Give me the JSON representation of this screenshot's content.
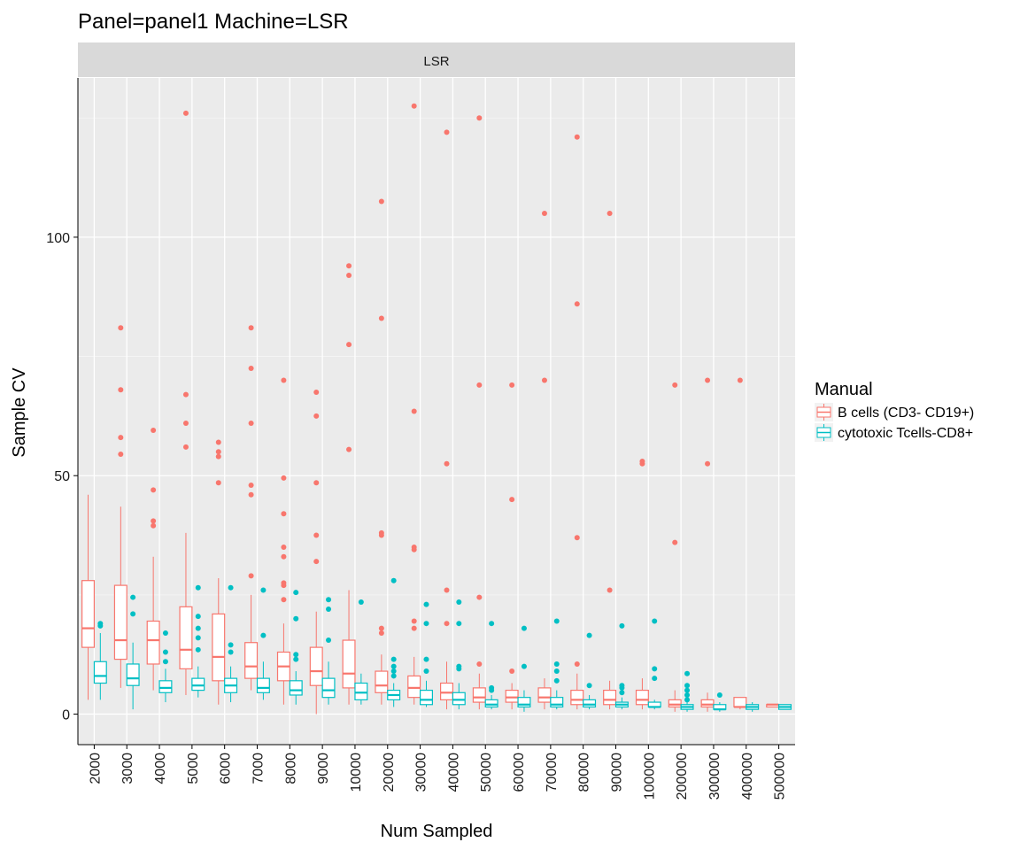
{
  "chart_data": {
    "type": "boxplot",
    "title": "Panel=panel1 Machine=LSR",
    "facet_label": "LSR",
    "xlabel": "Num Sampled",
    "ylabel": "Sample CV",
    "y_ticks": [
      0,
      50,
      100
    ],
    "y_ticks_labels": [
      "0",
      "50",
      "100"
    ],
    "ylim": [
      -6.4,
      133.4
    ],
    "legend": {
      "title": "Manual",
      "position": "right"
    },
    "categories": [
      "2000",
      "3000",
      "4000",
      "5000",
      "6000",
      "7000",
      "8000",
      "9000",
      "10000",
      "20000",
      "30000",
      "40000",
      "50000",
      "60000",
      "70000",
      "80000",
      "90000",
      "100000",
      "200000",
      "300000",
      "400000",
      "500000"
    ],
    "series": [
      {
        "name": "B cells (CD3- CD19+)",
        "color": "#F8766D",
        "boxes": [
          {
            "min": 3,
            "q1": 14,
            "median": 18,
            "q3": 28,
            "max": 46,
            "outliers": []
          },
          {
            "min": 5.5,
            "q1": 11.5,
            "median": 15.5,
            "q3": 27,
            "max": 43.5,
            "outliers": [
              54.5,
              58,
              68,
              81
            ]
          },
          {
            "min": 5,
            "q1": 10.5,
            "median": 15.5,
            "q3": 19.5,
            "max": 33,
            "outliers": [
              39.5,
              40.5,
              47,
              59.5
            ]
          },
          {
            "min": 4,
            "q1": 9.5,
            "median": 13.5,
            "q3": 22.5,
            "max": 38,
            "outliers": [
              56,
              61,
              67,
              126
            ]
          },
          {
            "min": 2,
            "q1": 7,
            "median": 12,
            "q3": 21,
            "max": 28.5,
            "outliers": [
              48.5,
              54,
              55,
              57
            ]
          },
          {
            "min": 5,
            "q1": 7.5,
            "median": 10,
            "q3": 15,
            "max": 25,
            "outliers": [
              29,
              46,
              48,
              61,
              72.5,
              81
            ]
          },
          {
            "min": 2,
            "q1": 7,
            "median": 10,
            "q3": 13,
            "max": 19,
            "outliers": [
              24,
              27,
              27.5,
              33,
              35,
              42,
              49.5,
              70
            ]
          },
          {
            "min": 0,
            "q1": 6,
            "median": 9,
            "q3": 14,
            "max": 21.5,
            "outliers": [
              32,
              37.5,
              48.5,
              62.5,
              67.5
            ]
          },
          {
            "min": 2,
            "q1": 5.5,
            "median": 8.5,
            "q3": 15.5,
            "max": 26,
            "outliers": [
              55.5,
              77.5,
              92,
              94
            ]
          },
          {
            "min": 2,
            "q1": 4.5,
            "median": 6,
            "q3": 9,
            "max": 12.5,
            "outliers": [
              17,
              18,
              37.5,
              38,
              83,
              107.5
            ]
          },
          {
            "min": 2,
            "q1": 3.5,
            "median": 5.5,
            "q3": 8,
            "max": 12,
            "outliers": [
              18,
              19.5,
              34.5,
              35,
              63.5,
              127.5
            ]
          },
          {
            "min": 1,
            "q1": 3,
            "median": 4.5,
            "q3": 6.5,
            "max": 11,
            "outliers": [
              19,
              26,
              52.5,
              122
            ]
          },
          {
            "min": 1,
            "q1": 2.5,
            "median": 3.5,
            "q3": 5.5,
            "max": 8.5,
            "outliers": [
              10.5,
              24.5,
              69,
              125
            ]
          },
          {
            "min": 1,
            "q1": 2.5,
            "median": 3.5,
            "q3": 5,
            "max": 6.5,
            "outliers": [
              9,
              45,
              69
            ]
          },
          {
            "min": 1,
            "q1": 2.5,
            "median": 3.5,
            "q3": 5.5,
            "max": 7.5,
            "outliers": [
              70,
              105
            ]
          },
          {
            "min": 1,
            "q1": 2,
            "median": 3,
            "q3": 5,
            "max": 8.5,
            "outliers": [
              10.5,
              37,
              86,
              121
            ]
          },
          {
            "min": 1,
            "q1": 2,
            "median": 3,
            "q3": 5,
            "max": 7,
            "outliers": [
              26,
              105
            ]
          },
          {
            "min": 1,
            "q1": 2,
            "median": 3,
            "q3": 5,
            "max": 7.5,
            "outliers": [
              52.5,
              53
            ]
          },
          {
            "min": 0.5,
            "q1": 1.5,
            "median": 2,
            "q3": 3,
            "max": 5,
            "outliers": [
              36,
              69
            ]
          },
          {
            "min": 0.5,
            "q1": 1.5,
            "median": 2,
            "q3": 3,
            "max": 4.5,
            "outliers": [
              52.5,
              70
            ]
          },
          {
            "min": 1,
            "q1": 1.5,
            "median": 1.5,
            "q3": 3.5,
            "max": 3.5,
            "outliers": [
              70
            ]
          },
          {
            "min": 1.5,
            "q1": 1.5,
            "median": 2,
            "q3": 2,
            "max": 2,
            "outliers": []
          }
        ]
      },
      {
        "name": "cytotoxic Tcells-CD8+",
        "color": "#00BFC4",
        "boxes": [
          {
            "min": 3,
            "q1": 6.5,
            "median": 8,
            "q3": 11,
            "max": 17,
            "outliers": [
              18.5,
              19
            ]
          },
          {
            "min": 1,
            "q1": 6,
            "median": 7.5,
            "q3": 10.5,
            "max": 15,
            "outliers": [
              21,
              24.5
            ]
          },
          {
            "min": 2.5,
            "q1": 4.5,
            "median": 5.5,
            "q3": 7,
            "max": 9.5,
            "outliers": [
              11,
              13,
              17
            ]
          },
          {
            "min": 3.5,
            "q1": 5,
            "median": 6,
            "q3": 7.5,
            "max": 10,
            "outliers": [
              13.5,
              16,
              18,
              20.5,
              26.5
            ]
          },
          {
            "min": 2.5,
            "q1": 4.5,
            "median": 6,
            "q3": 7.5,
            "max": 10,
            "outliers": [
              13,
              14.5,
              26.5
            ]
          },
          {
            "min": 3,
            "q1": 4.5,
            "median": 5.5,
            "q3": 7.5,
            "max": 11,
            "outliers": [
              16.5,
              26
            ]
          },
          {
            "min": 2,
            "q1": 4,
            "median": 5,
            "q3": 7,
            "max": 9,
            "outliers": [
              11.5,
              12.5,
              20,
              25.5
            ]
          },
          {
            "min": 2,
            "q1": 3.5,
            "median": 5,
            "q3": 7.5,
            "max": 11,
            "outliers": [
              15.5,
              22,
              24
            ]
          },
          {
            "min": 2,
            "q1": 3,
            "median": 4.5,
            "q3": 6.5,
            "max": 8.5,
            "outliers": [
              23.5
            ]
          },
          {
            "min": 1.5,
            "q1": 3,
            "median": 4,
            "q3": 5,
            "max": 6.5,
            "outliers": [
              8,
              9,
              10,
              11.5,
              28
            ]
          },
          {
            "min": 1.5,
            "q1": 2,
            "median": 3,
            "q3": 5,
            "max": 7,
            "outliers": [
              9,
              11.5,
              19,
              23
            ]
          },
          {
            "min": 1,
            "q1": 2,
            "median": 3,
            "q3": 4.5,
            "max": 6.5,
            "outliers": [
              9.5,
              10,
              19,
              23.5
            ]
          },
          {
            "min": 1,
            "q1": 1.5,
            "median": 2,
            "q3": 3,
            "max": 4,
            "outliers": [
              5,
              5.5,
              19
            ]
          },
          {
            "min": 0.5,
            "q1": 1.5,
            "median": 2,
            "q3": 3.5,
            "max": 5,
            "outliers": [
              10,
              18
            ]
          },
          {
            "min": 1,
            "q1": 1.5,
            "median": 2,
            "q3": 3.5,
            "max": 5,
            "outliers": [
              7,
              9,
              10.5,
              19.5
            ]
          },
          {
            "min": 1,
            "q1": 1.5,
            "median": 2,
            "q3": 3,
            "max": 4,
            "outliers": [
              6,
              16.5
            ]
          },
          {
            "min": 1,
            "q1": 1.5,
            "median": 2,
            "q3": 2.5,
            "max": 3.5,
            "outliers": [
              4.5,
              5.5,
              6,
              18.5
            ]
          },
          {
            "min": 1,
            "q1": 1.5,
            "median": 1.5,
            "q3": 2.5,
            "max": 3,
            "outliers": [
              7.5,
              9.5,
              19.5
            ]
          },
          {
            "min": 0.5,
            "q1": 1,
            "median": 1.5,
            "q3": 2,
            "max": 2.5,
            "outliers": [
              3,
              4,
              5,
              6,
              8.5
            ]
          },
          {
            "min": 0.5,
            "q1": 1,
            "median": 1,
            "q3": 2,
            "max": 2.5,
            "outliers": [
              4
            ]
          },
          {
            "min": 0.5,
            "q1": 1,
            "median": 1.5,
            "q3": 2,
            "max": 2.5,
            "outliers": []
          },
          {
            "min": 1,
            "q1": 1,
            "median": 1.5,
            "q3": 2,
            "max": 2,
            "outliers": []
          }
        ]
      }
    ]
  }
}
